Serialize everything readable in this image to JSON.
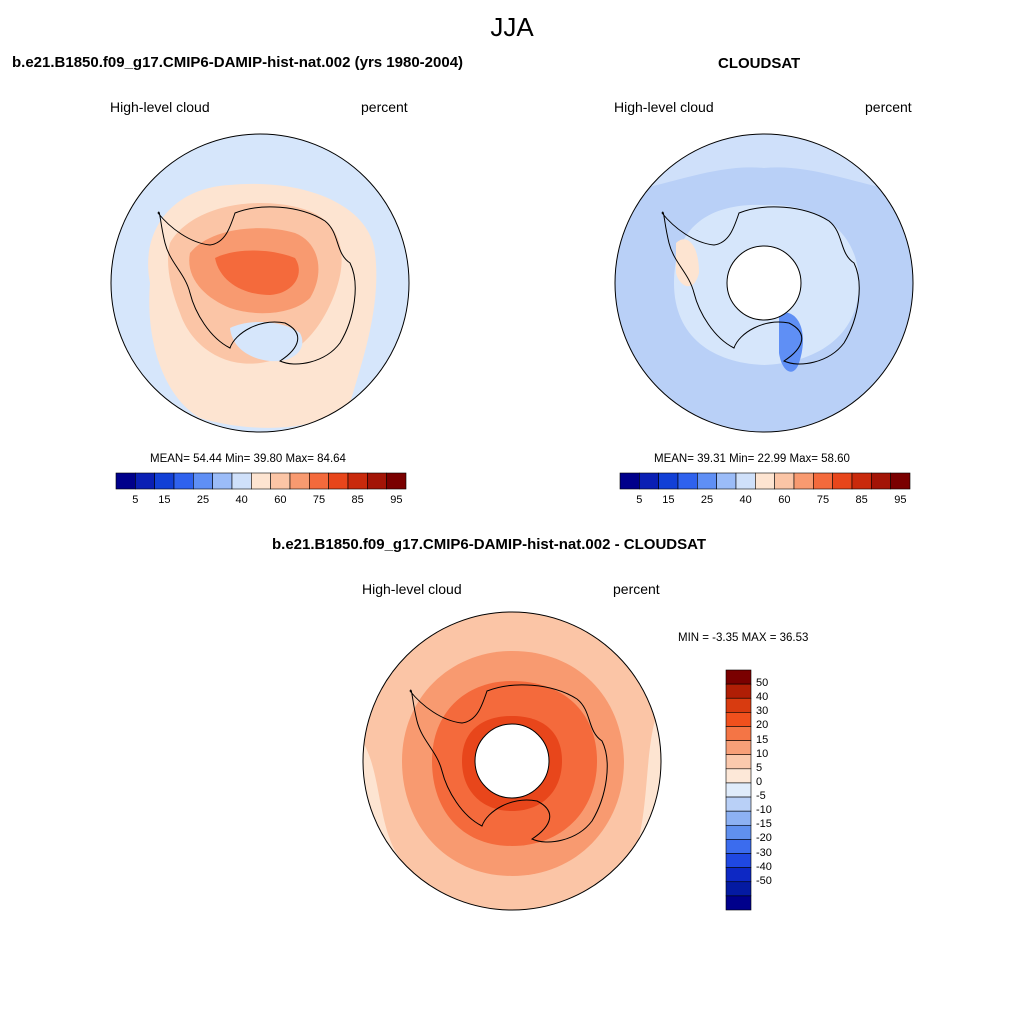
{
  "figure": {
    "title": "JJA"
  },
  "panels": [
    {
      "title": "b.e21.B1850.f09_g17.CMIP6-DAMIP-hist-nat.002 (yrs 1980-2004)",
      "variable": "High-level cloud",
      "units": "percent",
      "stats": "MEAN=  54.44  Min=  39.80  Max=  84.64"
    },
    {
      "title": "CLOUDSAT",
      "variable": "High-level cloud",
      "units": "percent",
      "stats": "MEAN=  39.31  Min=  22.99  Max=  58.60"
    },
    {
      "title": "b.e21.B1850.f09_g17.CMIP6-DAMIP-hist-nat.002 - CLOUDSAT",
      "variable": "High-level cloud",
      "units": "percent",
      "stats": "MIN =  -3.35 MAX =  36.53"
    }
  ],
  "colorbar_abs": {
    "colors": [
      "#00008b",
      "#0a1fb4",
      "#1240d6",
      "#2f62ee",
      "#5f8ff5",
      "#9bbcf8",
      "#cfe0fa",
      "#fde4d1",
      "#fbc5a6",
      "#f89a70",
      "#f46a3c",
      "#e8461b",
      "#c92a0c",
      "#a31406",
      "#7a0000"
    ],
    "labels": [
      "5",
      "15",
      "25",
      "40",
      "60",
      "75",
      "85",
      "95"
    ]
  },
  "colorbar_diff": {
    "colors_top_to_bottom": [
      "#7a0000",
      "#b01e05",
      "#d83b10",
      "#f0501d",
      "#f47545",
      "#f89f78",
      "#fbc9ad",
      "#fde8d8",
      "#e0ecfb",
      "#b9d0f7",
      "#8db1f3",
      "#6090ef",
      "#3b6cee",
      "#1f48e2",
      "#0d28c4",
      "#041aa2",
      "#00008b"
    ],
    "labels_top_to_bottom": [
      "50",
      "40",
      "30",
      "20",
      "15",
      "10",
      "5",
      "0",
      "-5",
      "-10",
      "-15",
      "-20",
      "-30",
      "-40",
      "-50"
    ]
  }
}
